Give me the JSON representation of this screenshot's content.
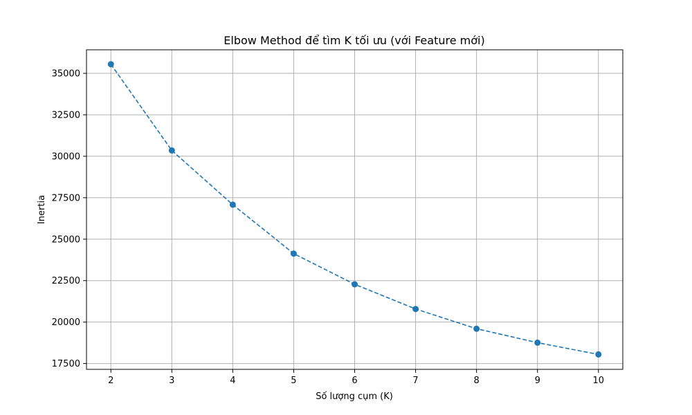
{
  "chart_data": {
    "type": "line",
    "title": "Elbow Method để tìm K tối ưu (với Feature mới)",
    "xlabel": "Số lượng cụm (K)",
    "ylabel": "Inertia",
    "x": [
      2,
      3,
      4,
      5,
      6,
      7,
      8,
      9,
      10
    ],
    "series": [
      {
        "values": [
          35550,
          30350,
          27080,
          24130,
          22280,
          20790,
          19600,
          18760,
          18050
        ],
        "color": "#1f77b4",
        "line_style": "dashed",
        "marker": "circle"
      }
    ],
    "xlim": [
      1.6,
      10.4
    ],
    "ylim": [
      17150,
      36420
    ],
    "x_ticks": [
      2,
      3,
      4,
      5,
      6,
      7,
      8,
      9,
      10
    ],
    "y_ticks": [
      17500,
      20000,
      22500,
      25000,
      27500,
      30000,
      32500,
      35000
    ],
    "x_tick_labels": [
      "2",
      "3",
      "4",
      "5",
      "6",
      "7",
      "8",
      "9",
      "10"
    ],
    "y_tick_labels": [
      "17500",
      "20000",
      "22500",
      "25000",
      "27500",
      "30000",
      "32500",
      "35000"
    ],
    "grid": true,
    "legend": "none"
  }
}
